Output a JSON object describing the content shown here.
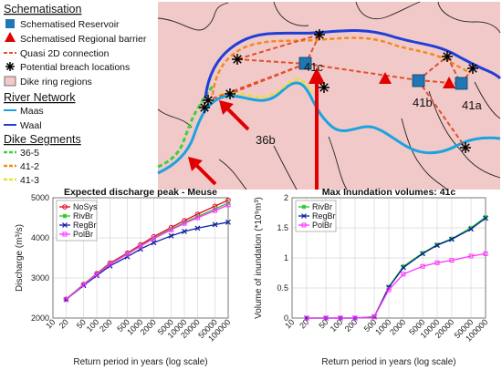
{
  "map": {
    "legend": {
      "schematisation_title": "Schematisation",
      "schematisation_items": [
        {
          "label": "Schematised Reservoir",
          "symbol": "square",
          "color": "#1f77b4"
        },
        {
          "label": "Schematised Regional barrier",
          "symbol": "triangle",
          "color": "#e00000"
        },
        {
          "label": "Quasi 2D connection",
          "symbol": "dashed-line",
          "color": "#e0502a"
        },
        {
          "label": "Potential breach locations",
          "symbol": "asterisk",
          "color": "#000000"
        },
        {
          "label": "Dike ring regions",
          "symbol": "box",
          "color": "#f2c9c9"
        }
      ],
      "river_title": "River Network",
      "river_items": [
        {
          "label": "Maas",
          "color": "#1aa3e0"
        },
        {
          "label": "Waal",
          "color": "#1f3fd6"
        }
      ],
      "dike_title": "Dike Segments",
      "dike_items": [
        {
          "label": "36-5",
          "color": "#3bd13b"
        },
        {
          "label": "41-2",
          "color": "#f28a1c"
        },
        {
          "label": "41-3",
          "color": "#e8e02a"
        }
      ]
    },
    "region_labels": [
      "41c",
      "41b",
      "41a",
      "36b"
    ]
  },
  "chart_data": [
    {
      "type": "line",
      "title": "Expected discharge peak - Meuse",
      "xlabel": "Return period in years (log scale)",
      "ylabel": "Discharge (m³/s)",
      "x_scale": "log",
      "x": [
        20,
        50,
        100,
        200,
        500,
        1000,
        2000,
        5000,
        10000,
        20000,
        50000,
        100000
      ],
      "x_ticks": [
        "10",
        "20",
        "50",
        "100",
        "200",
        "500",
        "1000",
        "2000",
        "5000",
        "10000",
        "20000",
        "50000",
        "100000"
      ],
      "ylim": [
        2000,
        5000
      ],
      "y_ticks": [
        2000,
        3000,
        4000,
        5000
      ],
      "grid": true,
      "legend_position": "top-left",
      "series": [
        {
          "name": "NoSys",
          "color": "#e8001c",
          "marker": "circle",
          "values": [
            2470,
            2840,
            3110,
            3370,
            3620,
            3830,
            4030,
            4260,
            4430,
            4590,
            4790,
            4940
          ]
        },
        {
          "name": "RivBr",
          "color": "#22c322",
          "marker": "star",
          "values": [
            2470,
            2840,
            3100,
            3350,
            3600,
            3800,
            3990,
            4220,
            4380,
            4530,
            4720,
            4870
          ]
        },
        {
          "name": "RegBr",
          "color": "#0a1fa0",
          "marker": "x",
          "values": [
            2460,
            2810,
            3060,
            3300,
            3530,
            3720,
            3880,
            4050,
            4160,
            4240,
            4330,
            4390
          ]
        },
        {
          "name": "PolBr",
          "color": "#ff33ff",
          "marker": "square",
          "values": [
            2460,
            2830,
            3090,
            3340,
            3590,
            3790,
            3980,
            4200,
            4360,
            4500,
            4680,
            4820
          ]
        }
      ]
    },
    {
      "type": "line",
      "title": "Max Inundation volumes: 41c",
      "xlabel": "Return period in years (log scale)",
      "ylabel": "Volume of inundation (*10⁹m³)",
      "x_scale": "log",
      "x": [
        20,
        50,
        100,
        200,
        500,
        1000,
        2000,
        5000,
        10000,
        20000,
        50000,
        100000
      ],
      "x_ticks": [
        "10",
        "20",
        "50",
        "100",
        "200",
        "500",
        "1000",
        "2000",
        "5000",
        "10000",
        "20000",
        "50000",
        "100000"
      ],
      "ylim": [
        0,
        2
      ],
      "y_ticks": [
        0,
        0.5,
        1,
        1.5,
        2
      ],
      "grid": true,
      "legend_position": "top-left",
      "series": [
        {
          "name": "RivBr",
          "color": "#22c322",
          "marker": "star",
          "values": [
            0,
            0,
            0,
            0,
            0.02,
            0.52,
            0.86,
            1.08,
            1.22,
            1.32,
            1.5,
            1.68
          ]
        },
        {
          "name": "RegBr",
          "color": "#0a1fa0",
          "marker": "x",
          "values": [
            0,
            0,
            0,
            0,
            0.02,
            0.51,
            0.84,
            1.07,
            1.21,
            1.31,
            1.48,
            1.66
          ]
        },
        {
          "name": "PolBr",
          "color": "#ff33ff",
          "marker": "square",
          "values": [
            0,
            0,
            0,
            0,
            0.02,
            0.47,
            0.73,
            0.86,
            0.92,
            0.96,
            1.03,
            1.07
          ]
        }
      ]
    }
  ]
}
